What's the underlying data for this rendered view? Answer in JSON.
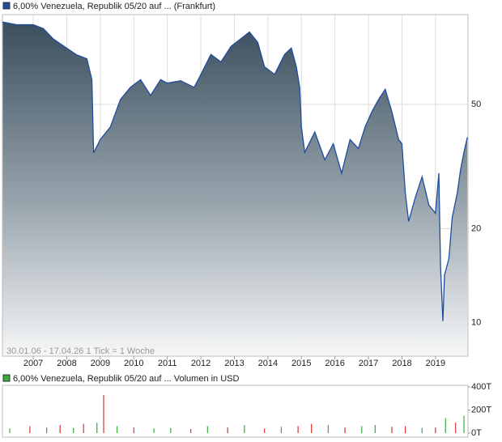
{
  "chart_data": [
    {
      "type": "area",
      "title": "6,00% Venezuela, Republik 05/20 auf ... (Frankfurt)",
      "legend_color": "#1f4d9e",
      "note": "30.01.06 - 17.04.26   1 Tick = 1 Woche",
      "log_scale": true,
      "grid": true,
      "color": "#1f4d9e",
      "xlim": [
        2006.08,
        2019.97
      ],
      "xticks": [
        2007,
        2008,
        2009,
        2010,
        2011,
        2012,
        2013,
        2014,
        2015,
        2016,
        2017,
        2018,
        2019
      ],
      "ylim": [
        7.8,
        97
      ],
      "yticks": [
        10,
        20,
        50
      ],
      "x": [
        2006.08,
        2006.5,
        2007.0,
        2007.3,
        2007.6,
        2008.0,
        2008.3,
        2008.6,
        2008.75,
        2008.8,
        2009.0,
        2009.3,
        2009.6,
        2009.9,
        2010.2,
        2010.5,
        2010.8,
        2011.0,
        2011.4,
        2011.8,
        2012.0,
        2012.3,
        2012.6,
        2012.9,
        2013.2,
        2013.45,
        2013.7,
        2013.9,
        2014.2,
        2014.5,
        2014.7,
        2014.85,
        2014.95,
        2015.0,
        2015.1,
        2015.4,
        2015.7,
        2015.95,
        2016.2,
        2016.45,
        2016.7,
        2016.9,
        2017.1,
        2017.3,
        2017.5,
        2017.7,
        2017.9,
        2018.0,
        2018.1,
        2018.2,
        2018.4,
        2018.6,
        2018.8,
        2019.0,
        2019.1,
        2019.15,
        2019.22,
        2019.27,
        2019.4,
        2019.5,
        2019.65,
        2019.75,
        2019.85,
        2019.95
      ],
      "values": [
        91.8,
        90,
        90,
        87.5,
        81,
        75.7,
        72,
        70,
        60,
        35,
        38.6,
        42.3,
        51.8,
        56.7,
        60,
        53.4,
        60,
        58.5,
        59.5,
        56.7,
        62.4,
        72.3,
        68.4,
        76.7,
        81.3,
        85.3,
        79,
        66,
        62.4,
        72.3,
        75.8,
        66,
        56.7,
        42.3,
        35.1,
        40.8,
        33.2,
        37.4,
        30.1,
        38.6,
        36.1,
        42.3,
        47.3,
        51.8,
        55.9,
        47.3,
        38.6,
        37.4,
        26.0,
        21.1,
        25.2,
        29.3,
        23.8,
        22.4,
        30.1,
        15.1,
        10.1,
        14.2,
        16.0,
        21.7,
        26.0,
        31.0,
        35.1,
        39.2
      ]
    },
    {
      "type": "bar",
      "title": "6,00% Venezuela, Republik 05/20 auf ... Volumen in USD",
      "legend_color": "#3cab3c",
      "xlim": [
        2006.08,
        2019.97
      ],
      "ylim": [
        0,
        400
      ],
      "yticks": [
        {
          "value": 0,
          "label": "0T"
        },
        {
          "value": 200,
          "label": "200T"
        },
        {
          "value": 400,
          "label": "400T"
        }
      ],
      "x": [
        2006.3,
        2006.9,
        2007.4,
        2007.8,
        2008.2,
        2008.5,
        2008.9,
        2009.1,
        2009.5,
        2010.0,
        2010.6,
        2011.1,
        2011.7,
        2012.2,
        2012.8,
        2013.3,
        2013.9,
        2014.4,
        2014.9,
        2015.3,
        2015.8,
        2016.3,
        2016.8,
        2017.2,
        2017.7,
        2018.1,
        2018.6,
        2019.0,
        2019.3,
        2019.6,
        2019.85
      ],
      "values": [
        40,
        60,
        50,
        70,
        45,
        80,
        90,
        330,
        60,
        50,
        40,
        45,
        35,
        60,
        50,
        70,
        40,
        55,
        60,
        80,
        70,
        50,
        60,
        70,
        55,
        60,
        45,
        50,
        130,
        90,
        150
      ],
      "colors": [
        "#3cab3c",
        "#d33",
        "#3cab3c",
        "#d33",
        "#3cab3c",
        "#d33",
        "#3cab3c",
        "#d33",
        "#3cab3c",
        "#d33",
        "#3cab3c",
        "#3cab3c",
        "#d33",
        "#3cab3c",
        "#d33",
        "#3cab3c",
        "#d33",
        "#3cab3c",
        "#d33",
        "#d33",
        "#3cab3c",
        "#d33",
        "#3cab3c",
        "#3cab3c",
        "#d33",
        "#d33",
        "#3cab3c",
        "#d33",
        "#3cab3c",
        "#d33",
        "#3cab3c"
      ]
    }
  ]
}
